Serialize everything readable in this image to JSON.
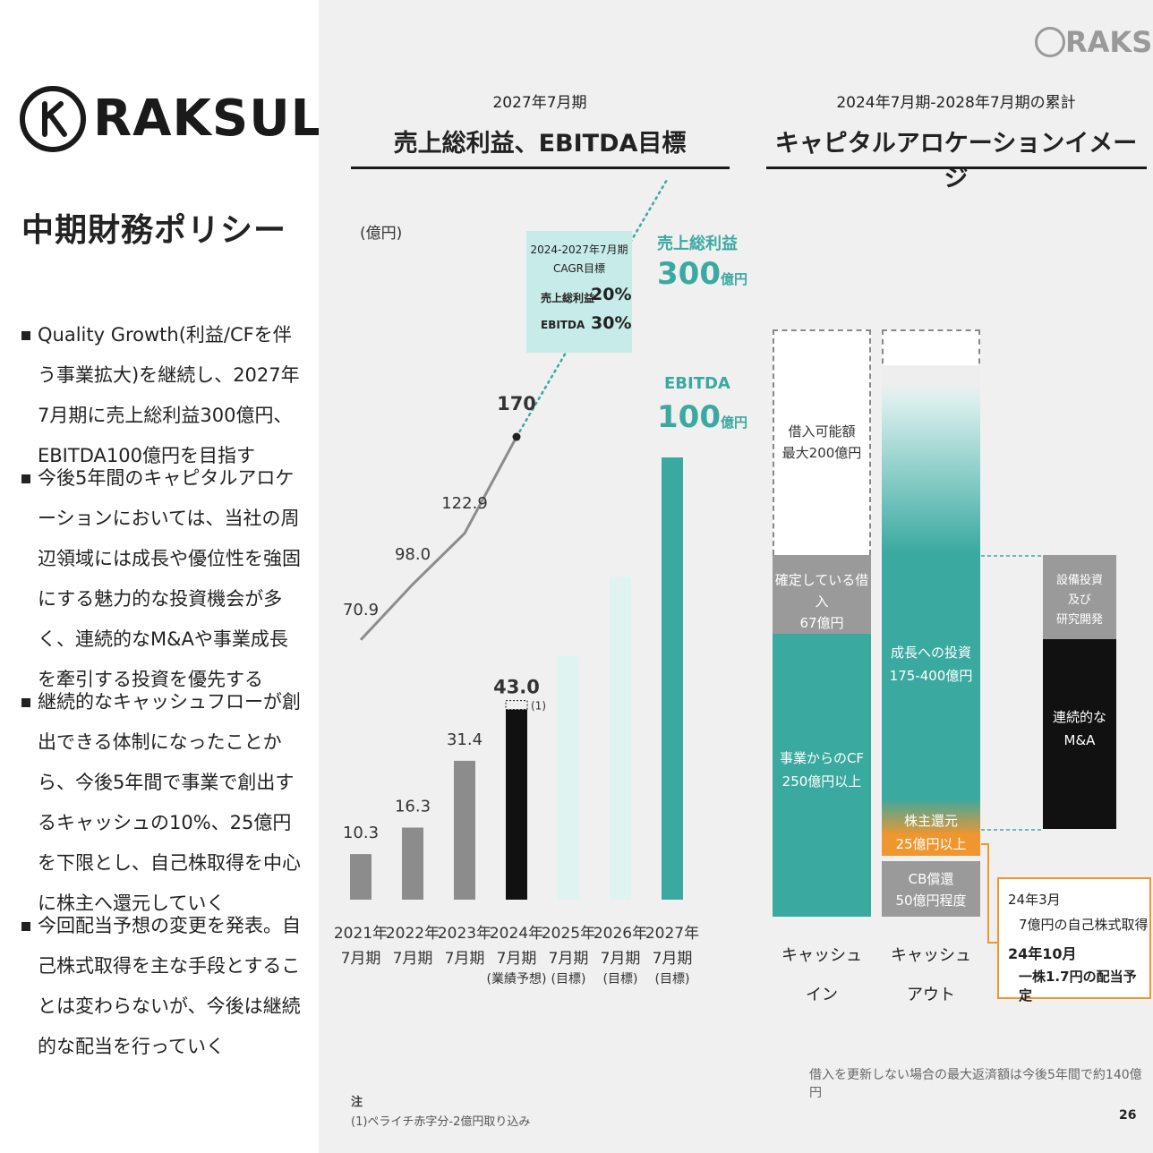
{
  "brand": {
    "name": "RAKSUL",
    "corner_name": "RAKSUL"
  },
  "left": {
    "title": "中期財務ポリシー",
    "bullets": [
      "Quality Growth(利益/CFを伴う事業拡大)を継続し、2027年7月期に売上総利益300億円、EBITDA100億円を目指す",
      "今後5年間のキャピタルアロケーションにおいては、当社の周辺領域には成長や優位性を強固にする魅力的な投資機会が多く、連続的なM&Aや事業成長を牽引する投資を優先する",
      "継続的なキャッシュフローが創出できる体制になったことから、今後5年間で事業で創出するキャッシュの10%、25億円を下限とし、自己株取得を中心に株主へ還元していく",
      "今回配当予想の変更を発表。自己株式取得を主な手段とすることは変わらないが、今後は継続的な配当を行っていく"
    ]
  },
  "section1": {
    "subtitle": "2027年7月期",
    "title": "売上総利益、EBITDA目標"
  },
  "section2": {
    "subtitle": "2024年7月期-2028年7月期の累計",
    "title": "キャピタルアロケーションイメージ"
  },
  "chart_data": [
    {
      "type": "bar",
      "unit_label": "(億円)",
      "categories": [
        [
          "2021年",
          "7月期",
          ""
        ],
        [
          "2022年",
          "7月期",
          ""
        ],
        [
          "2023年",
          "7月期",
          ""
        ],
        [
          "2024年",
          "7月期",
          "(業績予想)"
        ],
        [
          "2025年",
          "7月期",
          "(目標)"
        ],
        [
          "2026年",
          "7月期",
          "(目標)"
        ],
        [
          "2027年",
          "7月期",
          "(目標)"
        ]
      ],
      "series": [
        {
          "name": "EBITDA",
          "type": "bar",
          "values": [
            10.3,
            16.3,
            31.4,
            43.0,
            null,
            null,
            100
          ],
          "labels": [
            "10.3",
            "16.3",
            "31.4",
            "43.0",
            "",
            "",
            ""
          ],
          "colors": [
            "#8c8c8c",
            "#8c8c8c",
            "#8c8c8c",
            "#111111",
            "#dff3f1",
            "#dff3f1",
            "#3aa9a0"
          ],
          "projected_bar_heights": [
            null,
            null,
            null,
            null,
            55,
            73,
            null
          ]
        },
        {
          "name": "売上総利益",
          "type": "line",
          "values": [
            70.9,
            98.0,
            122.9,
            170,
            null,
            null,
            300
          ],
          "labels": [
            "70.9",
            "98.0",
            "122.9",
            "170",
            "",
            "",
            ""
          ]
        }
      ],
      "footnote_marker": "(1)",
      "cagr_box": {
        "title": "2024-2027年7月期",
        "subtitle": "CAGR目標",
        "rows": [
          {
            "label": "売上総利益",
            "value": "20%"
          },
          {
            "label": "EBITDA",
            "value": "30%"
          }
        ]
      },
      "target_gross": {
        "label": "売上総利益",
        "value": "300",
        "unit": "億円"
      },
      "target_ebitda": {
        "label": "EBITDA",
        "value": "100",
        "unit": "億円"
      }
    }
  ],
  "allocation": {
    "cash_in": {
      "label": [
        "キャッシュ",
        "イン"
      ],
      "segments": [
        {
          "text": [
            "借入可能額",
            "最大200億円"
          ]
        },
        {
          "text": [
            "確定している借入",
            "67億円"
          ]
        },
        {
          "text": [
            "事業からのCF",
            "250億円以上"
          ]
        }
      ]
    },
    "cash_out": {
      "label": [
        "キャッシュ",
        "アウト"
      ],
      "segments": [
        {
          "text": [
            "成長への投資",
            "175-400億円"
          ]
        },
        {
          "text": [
            "株主還元",
            "25億円以上"
          ]
        },
        {
          "text": [
            "CB償還",
            "50億円程度"
          ]
        }
      ]
    },
    "investment_breakdown": [
      {
        "text": [
          "設備投資",
          "及び",
          "研究開発"
        ]
      },
      {
        "text": [
          "連続的な",
          "M&A"
        ]
      }
    ],
    "callout": {
      "line1": "24年3月",
      "line2": "7億円の自己株式取得",
      "line3": "24年10月",
      "line4": "一株1.7円の配当予定"
    },
    "note": "借入を更新しない場合の最大返済額は今後5年間で約140億円"
  },
  "footnote": {
    "title": "注",
    "text": "(1)ペライチ赤字分-2億円取り込み"
  },
  "page_number": "26",
  "colors": {
    "teal": "#3aa9a0",
    "light_teal": "#dff3f1",
    "gray": "#8c8c8c",
    "black": "#111111",
    "orange": "#f0962f"
  }
}
